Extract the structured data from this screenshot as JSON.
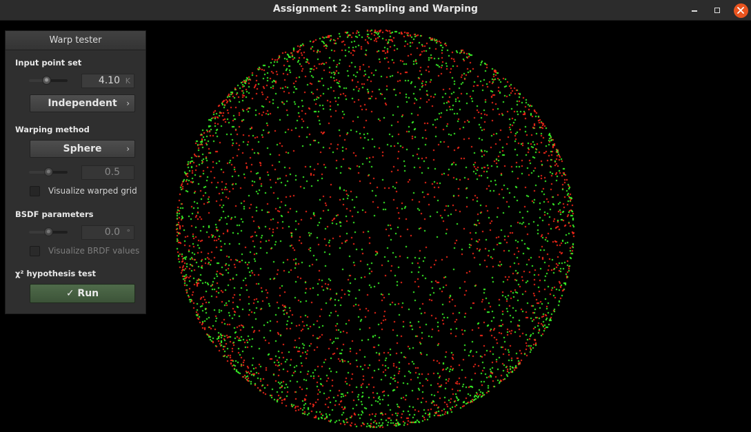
{
  "window": {
    "title": "Assignment 2: Sampling and Warping",
    "controls": {
      "minimize_icon": "minimize-icon",
      "maximize_icon": "maximize-icon",
      "close_icon": "close-icon",
      "close_color": "#e9541f"
    }
  },
  "panel": {
    "title": "Warp tester",
    "input_point_set": {
      "label": "Input point set",
      "slider_level": 0.45,
      "count_value": "4.10",
      "count_unit": "K",
      "method": "Independent"
    },
    "warping": {
      "label": "Warping method",
      "method": "Sphere",
      "slider_level": 0.5,
      "parameter_value": "0.5",
      "visualize_grid_label": "Visualize warped grid",
      "visualize_grid_checked": false
    },
    "bsdf": {
      "label": "BSDF parameters",
      "slider_level": 0.5,
      "value": "0.0",
      "unit": "°",
      "visualize_brdf_label": "Visualize BRDF values",
      "visualize_brdf_checked": false,
      "disabled": true
    },
    "chi2": {
      "label": "χ² hypothesis test",
      "run_label": "✓ Run",
      "run_color": "#4a6545"
    }
  },
  "visualization": {
    "kind": "point-cloud-sphere",
    "point_colors": [
      "#ff2a1a",
      "#3cff2a"
    ],
    "background": "#000000"
  }
}
